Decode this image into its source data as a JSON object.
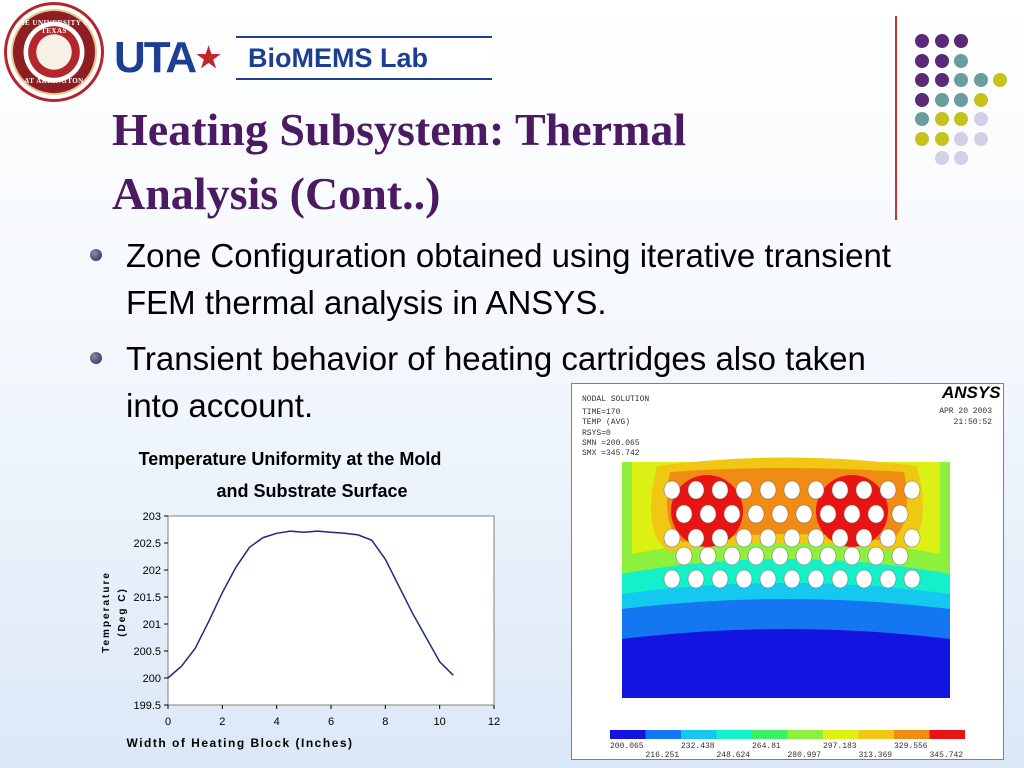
{
  "logos": {
    "seal_top": "THE UNIVERSITY OF TEXAS",
    "seal_bottom": "AT ARLINGTON",
    "uta": "UTA",
    "lab": "BioMEMS Lab"
  },
  "slide": {
    "title_line1": "Heating Subsystem: Thermal",
    "title_line2": "Analysis (Cont..)",
    "bullets": [
      "Zone Configuration obtained using iterative transient FEM thermal analysis in ANSYS.",
      "Transient behavior of heating cartridges also taken into account."
    ]
  },
  "decor": {
    "dot_colors": {
      "purple": "#5a2a78",
      "teal": "#6a9e9e",
      "yellow": "#c4c31c",
      "lavender": "#d0d0e6"
    },
    "dot_grid": [
      [
        "purple",
        "purple",
        "purple",
        null
      ],
      [
        "purple",
        "purple",
        "teal",
        null
      ],
      [
        "purple",
        "purple",
        "teal",
        "teal",
        "yellow"
      ],
      [
        "purple",
        "teal",
        "teal",
        "yellow"
      ],
      [
        "teal",
        "yellow",
        "yellow",
        "lavender"
      ],
      [
        "yellow",
        "yellow",
        "lavender",
        "lavender"
      ],
      [
        null,
        "lavender",
        "lavender"
      ]
    ]
  },
  "ansys": {
    "logo": "ANSYS",
    "info_lines": [
      "NODAL SOLUTION",
      "TIME=170",
      "TEMP       (AVG)",
      "RSYS=0",
      "SMN =200.065",
      "SMX =345.742"
    ],
    "date": "APR 20 2003",
    "time": "21:50:52",
    "legend_top": [
      "200.065",
      "232.438",
      "264.81",
      "297.183",
      "329.556"
    ],
    "legend_bottom": [
      "216.251",
      "248.624",
      "280.997",
      "313.369",
      "345.742"
    ],
    "legend_colors": [
      "#1414e0",
      "#1476f0",
      "#14c8f0",
      "#14f0c8",
      "#3cf064",
      "#8cf03c",
      "#dcf014",
      "#f0c814",
      "#f08c14",
      "#e81414"
    ]
  },
  "chart_data": {
    "type": "line",
    "title_line1": "Temperature Uniformity at the Mold",
    "title_line2": "and Substrate Surface",
    "xlabel": "Width of Heating Block (Inches)",
    "ylabel_line1": "Temperature",
    "ylabel_line2": "(Deg C)",
    "xlim": [
      0,
      12
    ],
    "ylim": [
      199.5,
      203
    ],
    "xticks": [
      "0",
      "2",
      "4",
      "6",
      "8",
      "10",
      "12"
    ],
    "yticks": [
      "199.5",
      "200",
      "200.5",
      "201",
      "201.5",
      "202",
      "202.5",
      "203"
    ],
    "line_color": "#1f2a7a",
    "x": [
      0,
      0.5,
      1,
      1.5,
      2,
      2.5,
      3,
      3.5,
      4,
      4.5,
      5,
      5.5,
      6,
      6.5,
      7,
      7.5,
      8,
      8.5,
      9,
      9.5,
      10,
      10.5
    ],
    "y": [
      200.0,
      200.22,
      200.55,
      201.05,
      201.58,
      202.05,
      202.42,
      202.6,
      202.68,
      202.72,
      202.7,
      202.72,
      202.7,
      202.68,
      202.65,
      202.55,
      202.2,
      201.7,
      201.2,
      200.75,
      200.3,
      200.05
    ]
  }
}
